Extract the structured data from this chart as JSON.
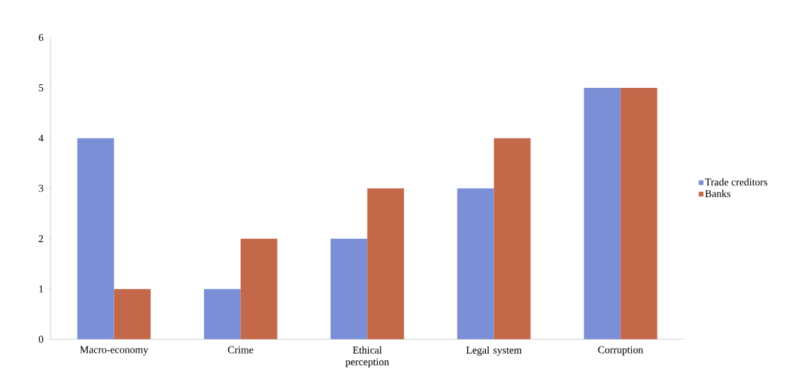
{
  "chart_data": {
    "type": "bar",
    "categories": [
      "Macro-economy",
      "Crime",
      "Ethical perception",
      "Legal system",
      "Corruption"
    ],
    "series": [
      {
        "name": "Trade creditors",
        "color": "#7b8fd6",
        "values": [
          4,
          1,
          2,
          3,
          5
        ]
      },
      {
        "name": "Banks",
        "color": "#c4684a",
        "values": [
          1,
          2,
          3,
          4,
          5
        ]
      }
    ],
    "ylim": [
      0,
      6
    ],
    "yticks": [
      0,
      1,
      2,
      3,
      4,
      5,
      6
    ],
    "grid": false,
    "legend": "right"
  }
}
